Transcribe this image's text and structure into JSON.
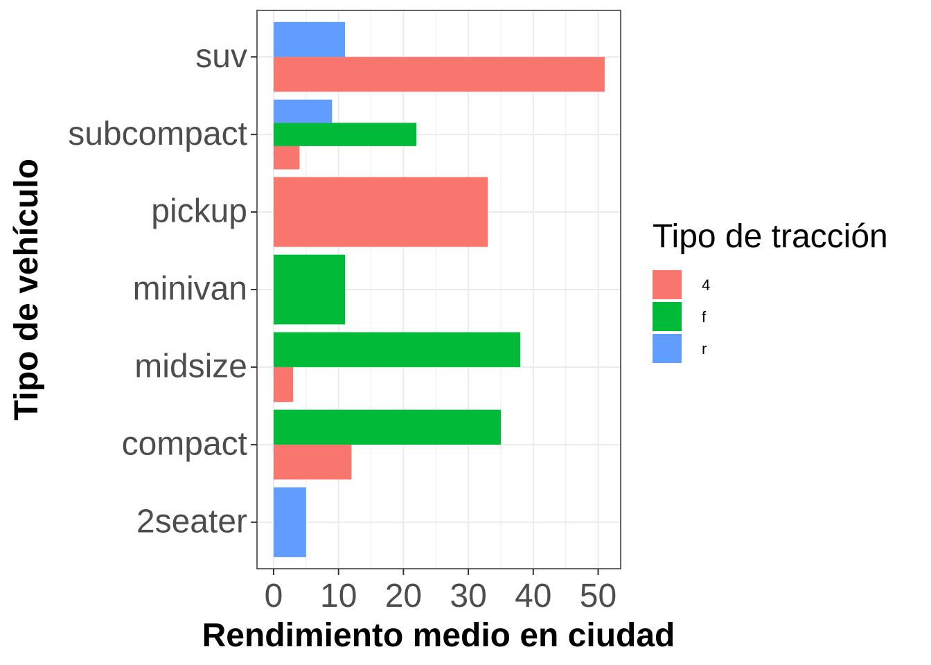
{
  "chart_data": {
    "type": "bar",
    "orientation": "horizontal",
    "position": "dodge",
    "categories": [
      "2seater",
      "compact",
      "midsize",
      "minivan",
      "pickup",
      "subcompact",
      "suv"
    ],
    "series": [
      {
        "name": "4",
        "color": "#F8766D",
        "values": [
          null,
          12,
          3,
          null,
          33,
          4,
          51
        ]
      },
      {
        "name": "f",
        "color": "#00BA38",
        "values": [
          null,
          35,
          38,
          11,
          null,
          22,
          null
        ]
      },
      {
        "name": "r",
        "color": "#619CFF",
        "values": [
          5,
          null,
          null,
          null,
          null,
          9,
          11
        ]
      }
    ],
    "xlabel": "Rendimiento medio en ciudad",
    "ylabel": "Tipo de vehículo",
    "xlim": [
      0,
      51
    ],
    "xticks": [
      "0",
      "10",
      "20",
      "30",
      "40",
      "50"
    ],
    "grid": true,
    "legend": {
      "title": "Tipo de tracción",
      "position": "right"
    }
  }
}
